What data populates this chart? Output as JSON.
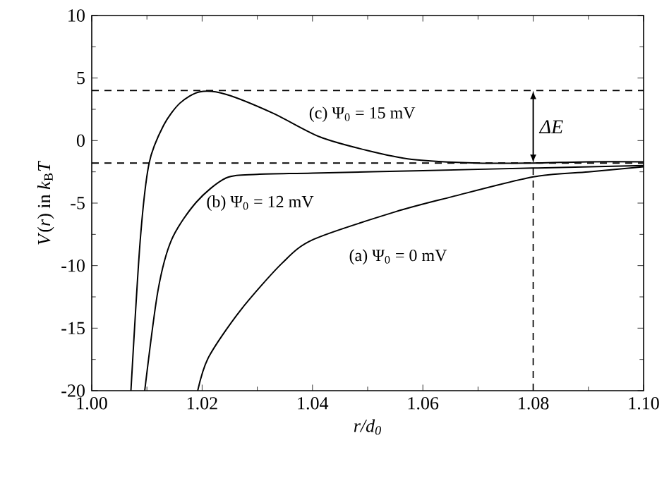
{
  "chart_data": {
    "type": "line",
    "xlabel": "r/d$_{0}$",
    "ylabel": "*V*(*r*) in *k*$_{B}$*T*",
    "xlim": [
      1.0,
      1.1
    ],
    "ylim": [
      -20,
      10
    ],
    "xticks": [
      {
        "value": 1.0,
        "label": "1.00"
      },
      {
        "value": 1.02,
        "label": "1.02"
      },
      {
        "value": 1.04,
        "label": "1.04"
      },
      {
        "value": 1.06,
        "label": "1.06"
      },
      {
        "value": 1.08,
        "label": "1.08"
      },
      {
        "value": 1.1,
        "label": "1.10"
      }
    ],
    "yticks": [
      -20,
      -15,
      -10,
      -5,
      0,
      5,
      10
    ],
    "series": [
      {
        "name": "(a) Ψ$_{0}$ = 0 mV",
        "color": "#000000",
        "x": [
          1.0192,
          1.0212,
          1.0269,
          1.0345,
          1.0402,
          1.055,
          1.0652,
          1.08,
          1.09,
          1.1
        ],
        "values": [
          -20,
          -17.3,
          -13.6,
          -9.8,
          -7.9,
          -5.7,
          -4.5,
          -2.9,
          -2.5,
          -2.1
        ]
      },
      {
        "name": "(b) Ψ$_{0}$ = 12 mV",
        "color": "#000000",
        "x": [
          1.0096,
          1.012,
          1.0145,
          1.019,
          1.0243,
          1.03,
          1.04,
          1.06,
          1.08,
          1.1
        ],
        "values": [
          -20,
          -12,
          -7.9,
          -4.9,
          -3.0,
          -2.7,
          -2.6,
          -2.4,
          -2.2,
          -2.0
        ]
      },
      {
        "name": "(c) Ψ$_{0}$ = 15 mV",
        "color": "#000000",
        "x": [
          1.0071,
          1.0088,
          1.0104,
          1.013,
          1.016,
          1.0196,
          1.0243,
          1.0328,
          1.0413,
          1.05,
          1.058,
          1.07,
          1.08,
          1.09,
          1.1
        ],
        "values": [
          -20,
          -7.9,
          -1.8,
          1.2,
          3.0,
          3.9,
          3.7,
          2.2,
          0.3,
          -0.8,
          -1.5,
          -1.8,
          -1.8,
          -1.7,
          -1.7
        ]
      }
    ],
    "marker": "none",
    "line_style": "solid",
    "ref_lines": [
      {
        "axis": "y",
        "value": 4.0,
        "line_style": "dashed",
        "color": "#000000"
      },
      {
        "axis": "y",
        "value": -1.8,
        "line_style": "dashed",
        "color": "#000000"
      },
      {
        "axis": "x",
        "value": 1.08,
        "line_style": "dashed",
        "color": "#000000"
      }
    ],
    "annotations": [
      "ΔE"
    ]
  }
}
